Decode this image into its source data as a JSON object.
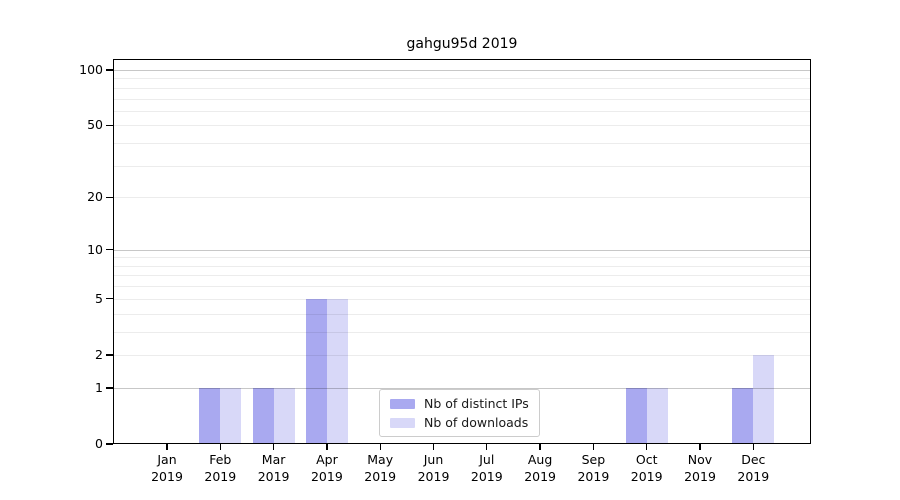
{
  "chart_data": {
    "type": "bar",
    "title": "gahgu95d 2019",
    "months": [
      "Jan",
      "Feb",
      "Mar",
      "Apr",
      "May",
      "Jun",
      "Jul",
      "Aug",
      "Sep",
      "Oct",
      "Nov",
      "Dec"
    ],
    "year": "2019",
    "categories": [
      "Jan 2019",
      "Feb 2019",
      "Mar 2019",
      "Apr 2019",
      "May 2019",
      "Jun 2019",
      "Jul 2019",
      "Aug 2019",
      "Sep 2019",
      "Oct 2019",
      "Nov 2019",
      "Dec 2019"
    ],
    "series": [
      {
        "name": "Nb of distinct IPs",
        "color": "#a9a9f0",
        "values": [
          0,
          1,
          1,
          5,
          0,
          0,
          0,
          0,
          0,
          1,
          0,
          1
        ]
      },
      {
        "name": "Nb of downloads",
        "color": "#d8d8f8",
        "values": [
          0,
          1,
          1,
          5,
          0,
          0,
          0,
          0,
          0,
          1,
          0,
          2
        ]
      }
    ],
    "yscale": "log1p",
    "ylim": [
      0,
      115
    ],
    "yticks": [
      0,
      1,
      2,
      5,
      10,
      20,
      50,
      100
    ],
    "grid": {
      "minor_values": [
        2,
        3,
        4,
        5,
        6,
        7,
        8,
        9,
        20,
        30,
        40,
        50,
        60,
        70,
        80,
        90
      ],
      "major_values": [
        1,
        10,
        100
      ]
    },
    "legend_position": "lower-center-inside",
    "colors": {
      "grid_minor": "rgba(0,0,0,0.075)",
      "grid_major": "rgba(0,0,0,0.22)",
      "spine": "#000000",
      "background": "#ffffff"
    }
  }
}
